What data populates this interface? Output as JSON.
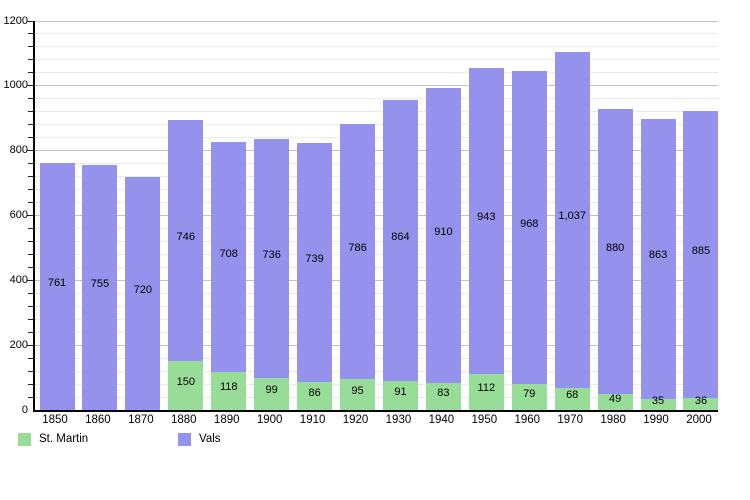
{
  "chart_data": {
    "type": "bar",
    "stacked": true,
    "title": "",
    "xlabel": "",
    "ylabel": "",
    "ylim": [
      0,
      1200
    ],
    "ytick_major": 200,
    "ytick_minor": 40,
    "grid": true,
    "legend_position": "bottom",
    "categories": [
      "1850",
      "1860",
      "1870",
      "1880",
      "1890",
      "1900",
      "1910",
      "1920",
      "1930",
      "1940",
      "1950",
      "1960",
      "1970",
      "1980",
      "1990",
      "2000"
    ],
    "series": [
      {
        "name": "St. Martin",
        "color": "#97dc97",
        "values": [
          0,
          0,
          0,
          150,
          118,
          99,
          86,
          95,
          91,
          83,
          112,
          79,
          68,
          49,
          35,
          36
        ],
        "labels": [
          "",
          "",
          "",
          "150",
          "118",
          "99",
          "86",
          "95",
          "91",
          "83",
          "112",
          "79",
          "68",
          "49",
          "35",
          "36"
        ]
      },
      {
        "name": "Vals",
        "color": "#9492ec",
        "values": [
          761,
          755,
          720,
          746,
          708,
          736,
          739,
          786,
          864,
          910,
          943,
          968,
          1037,
          880,
          863,
          885
        ],
        "labels": [
          "761",
          "755",
          "720",
          "746",
          "708",
          "736",
          "739",
          "786",
          "864",
          "910",
          "943",
          "968",
          "1,037",
          "880",
          "863",
          "885"
        ]
      }
    ],
    "y_axis_tick_labels": [
      "0",
      "200",
      "400",
      "600",
      "800",
      "1000",
      "1200"
    ]
  },
  "legend": {
    "items": [
      {
        "label": "St. Martin",
        "color": "#97dc97"
      },
      {
        "label": "Vals",
        "color": "#9492ec"
      }
    ]
  },
  "colors": {
    "axis": "#000000",
    "grid_major": "#c2c2c2",
    "grid_minor": "#eaeaea",
    "background": "#ffffff",
    "label_text": "#000000"
  }
}
